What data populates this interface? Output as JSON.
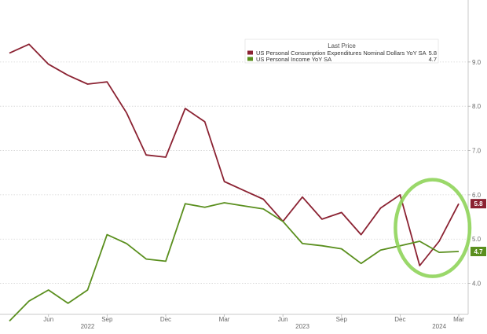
{
  "chart_data": {
    "type": "line",
    "title": "",
    "xlabel": "",
    "ylabel": "",
    "x": [
      "2022-04",
      "2022-05",
      "2022-06",
      "2022-07",
      "2022-08",
      "2022-09",
      "2022-10",
      "2022-11",
      "2022-12",
      "2023-01",
      "2023-02",
      "2023-03",
      "2023-04",
      "2023-05",
      "2023-06",
      "2023-07",
      "2023-08",
      "2023-09",
      "2023-10",
      "2023-11",
      "2023-12",
      "2024-01",
      "2024-02",
      "2024-03"
    ],
    "x_tick_labels": [
      {
        "x": "2022-06",
        "label": "Jun"
      },
      {
        "x": "2022-09",
        "label": "Sep"
      },
      {
        "x": "2022-12",
        "label": "Dec"
      },
      {
        "x": "2023-03",
        "label": "Mar"
      },
      {
        "x": "2023-06",
        "label": "Jun"
      },
      {
        "x": "2023-09",
        "label": "Sep"
      },
      {
        "x": "2023-12",
        "label": "Dec"
      },
      {
        "x": "2024-03",
        "label": "Mar"
      }
    ],
    "year_labels": [
      {
        "x": "2022-08",
        "label": "2022"
      },
      {
        "x": "2023-07",
        "label": "2023"
      },
      {
        "x": "2024-02",
        "label": "2024"
      }
    ],
    "y_ticks": [
      "4.0",
      "5.0",
      "6.0",
      "7.0",
      "8.0",
      "9.0"
    ],
    "ylim": [
      3.3,
      10.4
    ],
    "grid": "horizontal dotted",
    "legend": {
      "title": "Last Price",
      "placement": "top-right",
      "entries": [
        {
          "series": 0,
          "label": "US Personal Consumption Expenditures Nominal Dollars YoY SA",
          "value": "5.8"
        },
        {
          "series": 1,
          "label": "US Personal Income YoY SA",
          "value": "4.7"
        }
      ]
    },
    "series": [
      {
        "name": "US Personal Consumption Expenditures Nominal Dollars YoY SA",
        "color": "#8b2232",
        "values": [
          9.2,
          9.4,
          8.95,
          8.7,
          8.5,
          8.55,
          7.85,
          6.9,
          6.85,
          7.95,
          7.65,
          6.3,
          6.1,
          5.9,
          5.4,
          5.95,
          5.45,
          5.6,
          5.1,
          5.7,
          6.0,
          4.4,
          4.95,
          5.8
        ],
        "last_value_tag": "5.8"
      },
      {
        "name": "US Personal Income YoY SA",
        "color": "#5a8f1e",
        "values": [
          3.15,
          3.6,
          3.85,
          3.55,
          3.85,
          5.1,
          4.9,
          4.55,
          4.5,
          5.8,
          5.72,
          5.82,
          5.75,
          5.68,
          5.4,
          4.9,
          4.85,
          4.78,
          4.45,
          4.75,
          4.85,
          4.95,
          4.7,
          4.72
        ],
        "last_value_tag": "4.7"
      }
    ],
    "annotation": {
      "type": "ellipse-highlight",
      "color": "#8fd45a",
      "x_from": "2023-12",
      "x_to": "2024-03",
      "y_from": 4.3,
      "y_to": 6.2
    }
  }
}
